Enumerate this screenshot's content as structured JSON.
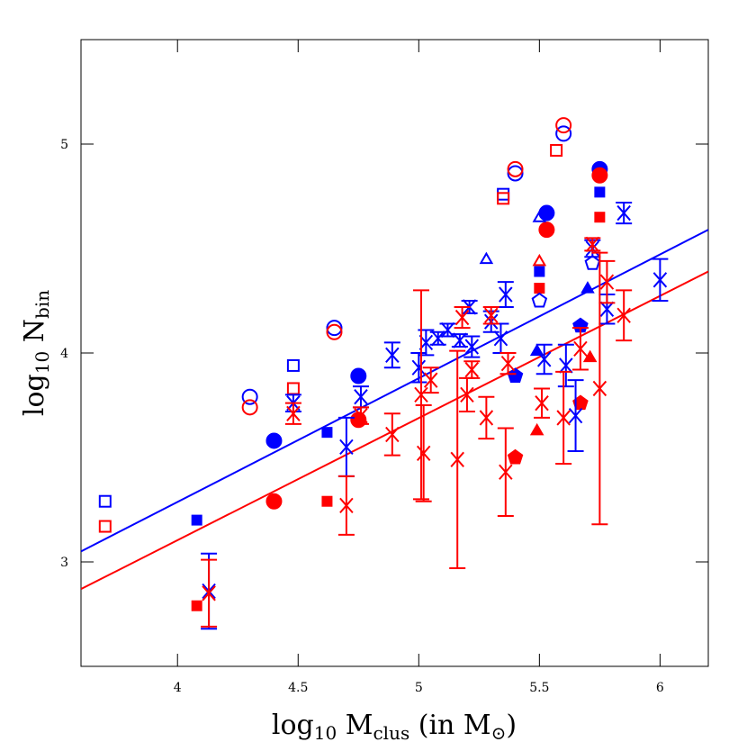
{
  "chart_data": {
    "type": "scatter",
    "xlabel": [
      "log",
      "10",
      " M",
      "clus",
      " (in M",
      "⊙",
      ")"
    ],
    "ylabel": [
      "log",
      "10",
      " N",
      "bin"
    ],
    "xlim": [
      3.6,
      6.2
    ],
    "ylim": [
      2.5,
      5.5
    ],
    "xticks": [
      4,
      4.5,
      5,
      5.5,
      6
    ],
    "yticks": [
      3,
      4,
      5
    ],
    "lines": [
      {
        "color": "#0000ff",
        "x": [
          3.6,
          6.2
        ],
        "y": [
          3.05,
          4.59
        ]
      },
      {
        "color": "#ff0000",
        "x": [
          3.6,
          6.2
        ],
        "y": [
          2.87,
          4.39
        ]
      }
    ],
    "series": [
      {
        "marker": "open-circle",
        "color": "#0000ff",
        "x": [
          4.3,
          4.65,
          5.4,
          5.6
        ],
        "y": [
          3.79,
          4.12,
          4.86,
          5.05
        ]
      },
      {
        "marker": "open-circle",
        "color": "#ff0000",
        "x": [
          4.3,
          4.65,
          5.4,
          5.6
        ],
        "y": [
          3.74,
          4.1,
          4.88,
          5.09
        ]
      },
      {
        "marker": "open-square",
        "color": "#0000ff",
        "x": [
          3.7,
          4.48,
          5.35
        ],
        "y": [
          3.29,
          3.94,
          4.76
        ]
      },
      {
        "marker": "open-square",
        "color": "#ff0000",
        "x": [
          3.7,
          4.48,
          5.35,
          5.57
        ],
        "y": [
          3.17,
          3.83,
          4.74,
          4.97
        ]
      },
      {
        "marker": "filled-circle",
        "color": "#0000ff",
        "x": [
          4.4,
          4.75,
          5.53,
          5.75
        ],
        "y": [
          3.58,
          3.89,
          4.67,
          4.88
        ]
      },
      {
        "marker": "filled-circle",
        "color": "#ff0000",
        "x": [
          4.4,
          4.75,
          5.53,
          5.75
        ],
        "y": [
          3.29,
          3.68,
          4.59,
          4.85
        ]
      },
      {
        "marker": "filled-square",
        "color": "#0000ff",
        "x": [
          4.08,
          4.62,
          5.5,
          5.75
        ],
        "y": [
          3.2,
          3.62,
          4.39,
          4.77
        ]
      },
      {
        "marker": "filled-square",
        "color": "#ff0000",
        "x": [
          4.08,
          4.62,
          5.5,
          5.75
        ],
        "y": [
          2.79,
          3.29,
          4.31,
          4.65
        ]
      },
      {
        "marker": "open-triangle",
        "color": "#0000ff",
        "x": [
          5.28,
          5.5
        ],
        "y": [
          4.45,
          4.65
        ]
      },
      {
        "marker": "open-triangle",
        "color": "#ff0000",
        "x": [
          5.5
        ],
        "y": [
          4.44
        ]
      },
      {
        "marker": "filled-triangle",
        "color": "#0000ff",
        "x": [
          5.49,
          5.7
        ],
        "y": [
          4.01,
          4.31
        ]
      },
      {
        "marker": "filled-triangle",
        "color": "#ff0000",
        "x": [
          5.49,
          5.71
        ],
        "y": [
          3.63,
          3.98
        ]
      },
      {
        "marker": "open-pentagon",
        "color": "#0000ff",
        "x": [
          5.5,
          5.72
        ],
        "y": [
          4.25,
          4.43
        ]
      },
      {
        "marker": "filled-pentagon",
        "color": "#0000ff",
        "x": [
          5.4,
          5.67
        ],
        "y": [
          3.89,
          4.13
        ]
      },
      {
        "marker": "filled-pentagon",
        "color": "#ff0000",
        "x": [
          5.4,
          5.67
        ],
        "y": [
          3.5,
          3.76
        ]
      },
      {
        "marker": "cross",
        "color": "#0000ff",
        "x": [
          4.13,
          4.48,
          4.7,
          4.76,
          4.89,
          5.0,
          5.03,
          5.08,
          5.12,
          5.17,
          5.21,
          5.22,
          5.3,
          5.34,
          5.36,
          5.52,
          5.61,
          5.65,
          5.72,
          5.78,
          5.85,
          6.0
        ],
        "y": [
          2.86,
          3.76,
          3.55,
          3.79,
          3.99,
          3.93,
          4.05,
          4.07,
          4.11,
          4.06,
          4.22,
          4.03,
          4.15,
          4.07,
          4.28,
          3.97,
          3.94,
          3.7,
          4.5,
          4.21,
          4.67,
          4.35
        ],
        "yerr": [
          0.18,
          0.04,
          0.14,
          0.05,
          0.06,
          0.07,
          0.06,
          0.03,
          0.03,
          0.03,
          0.03,
          0.05,
          0.05,
          0.07,
          0.06,
          0.07,
          0.1,
          0.17,
          0.04,
          0.07,
          0.05,
          0.1
        ]
      },
      {
        "marker": "cross",
        "color": "#ff0000",
        "x": [
          4.13,
          4.48,
          4.7,
          4.76,
          4.89,
          5.01,
          5.02,
          5.05,
          5.16,
          5.18,
          5.2,
          5.22,
          5.28,
          5.3,
          5.36,
          5.37,
          5.51,
          5.6,
          5.67,
          5.72,
          5.75,
          5.78,
          5.85
        ],
        "y": [
          2.85,
          3.71,
          3.27,
          3.7,
          3.61,
          3.8,
          3.52,
          3.87,
          3.49,
          4.17,
          3.8,
          3.92,
          3.69,
          4.18,
          3.43,
          3.95,
          3.76,
          3.69,
          4.02,
          4.52,
          3.83,
          4.34,
          4.18
        ],
        "yerr": [
          0.16,
          0.05,
          0.14,
          0.04,
          0.1,
          0.5,
          0.23,
          0.06,
          0.52,
          0.05,
          0.08,
          0.04,
          0.1,
          0.04,
          0.21,
          0.05,
          0.07,
          0.22,
          0.1,
          0.03,
          0.65,
          0.1,
          0.12
        ]
      }
    ]
  }
}
